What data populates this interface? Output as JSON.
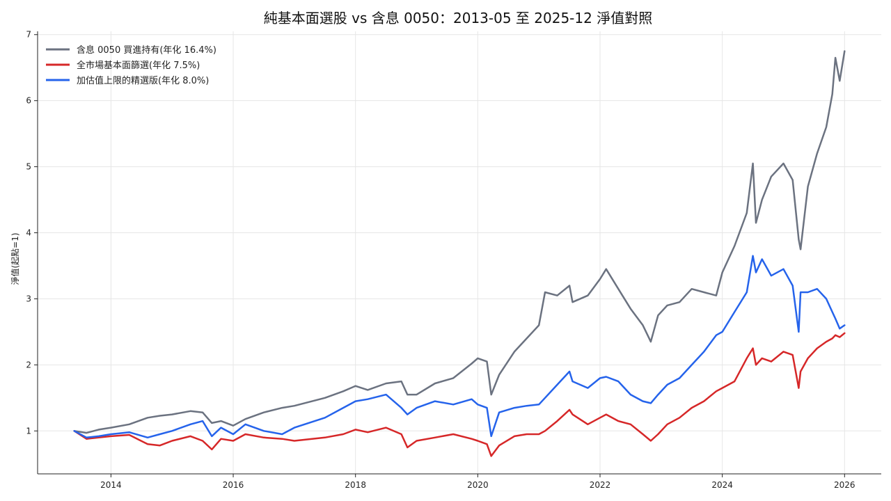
{
  "chart_data": {
    "type": "line",
    "title": "純基本面選股 vs 含息 0050：2013-05 至 2025-12 淨值對照",
    "xlabel": "",
    "ylabel": "淨值(起點=1)",
    "xlim": [
      2012.8,
      2026.6
    ],
    "ylim": [
      0.35,
      7.05
    ],
    "x_ticks": [
      2014,
      2016,
      2018,
      2020,
      2022,
      2024,
      2026
    ],
    "y_ticks": [
      1,
      2,
      3,
      4,
      5,
      6,
      7
    ],
    "grid": true,
    "legend_position": "top-left",
    "series": [
      {
        "name": "含息 0050 買進持有(年化 16.4%)",
        "color": "#6b7280",
        "x": [
          2013.4,
          2013.6,
          2013.8,
          2014.0,
          2014.3,
          2014.6,
          2014.8,
          2015.0,
          2015.3,
          2015.5,
          2015.65,
          2015.8,
          2016.0,
          2016.2,
          2016.5,
          2016.8,
          2017.0,
          2017.5,
          2017.8,
          2018.0,
          2018.2,
          2018.5,
          2018.75,
          2018.85,
          2019.0,
          2019.3,
          2019.6,
          2019.9,
          2020.0,
          2020.15,
          2020.22,
          2020.35,
          2020.6,
          2020.8,
          2021.0,
          2021.1,
          2021.3,
          2021.5,
          2021.55,
          2021.8,
          2022.0,
          2022.1,
          2022.3,
          2022.5,
          2022.7,
          2022.83,
          2022.95,
          2023.1,
          2023.3,
          2023.5,
          2023.7,
          2023.9,
          2024.0,
          2024.2,
          2024.4,
          2024.5,
          2024.55,
          2024.65,
          2024.8,
          2025.0,
          2025.15,
          2025.25,
          2025.28,
          2025.4,
          2025.55,
          2025.7,
          2025.8,
          2025.85,
          2025.92,
          2026.0
        ],
        "values": [
          1.0,
          0.97,
          1.02,
          1.05,
          1.1,
          1.2,
          1.23,
          1.25,
          1.3,
          1.28,
          1.12,
          1.15,
          1.08,
          1.18,
          1.28,
          1.35,
          1.38,
          1.5,
          1.6,
          1.68,
          1.62,
          1.72,
          1.75,
          1.55,
          1.55,
          1.72,
          1.8,
          2.02,
          2.1,
          2.05,
          1.55,
          1.85,
          2.2,
          2.4,
          2.6,
          3.1,
          3.05,
          3.2,
          2.95,
          3.05,
          3.3,
          3.45,
          3.15,
          2.85,
          2.6,
          2.35,
          2.75,
          2.9,
          2.95,
          3.15,
          3.1,
          3.05,
          3.4,
          3.8,
          4.3,
          5.05,
          4.15,
          4.5,
          4.85,
          5.05,
          4.8,
          3.9,
          3.75,
          4.7,
          5.2,
          5.6,
          6.1,
          6.65,
          6.3,
          6.75
        ]
      },
      {
        "name": "全市場基本面篩選(年化 7.5%)",
        "color": "#d62728",
        "x": [
          2013.4,
          2013.6,
          2013.8,
          2014.0,
          2014.3,
          2014.6,
          2014.8,
          2015.0,
          2015.3,
          2015.5,
          2015.65,
          2015.8,
          2016.0,
          2016.2,
          2016.5,
          2016.8,
          2017.0,
          2017.5,
          2017.8,
          2018.0,
          2018.2,
          2018.5,
          2018.75,
          2018.85,
          2019.0,
          2019.3,
          2019.6,
          2019.9,
          2020.0,
          2020.15,
          2020.22,
          2020.35,
          2020.6,
          2020.8,
          2021.0,
          2021.1,
          2021.3,
          2021.5,
          2021.55,
          2021.8,
          2022.0,
          2022.1,
          2022.3,
          2022.5,
          2022.7,
          2022.83,
          2022.95,
          2023.1,
          2023.3,
          2023.5,
          2023.7,
          2023.9,
          2024.0,
          2024.2,
          2024.4,
          2024.5,
          2024.55,
          2024.65,
          2024.8,
          2025.0,
          2025.15,
          2025.25,
          2025.28,
          2025.4,
          2025.55,
          2025.7,
          2025.8,
          2025.85,
          2025.92,
          2026.0
        ],
        "values": [
          1.0,
          0.88,
          0.9,
          0.92,
          0.94,
          0.8,
          0.78,
          0.85,
          0.92,
          0.85,
          0.72,
          0.88,
          0.85,
          0.95,
          0.9,
          0.88,
          0.85,
          0.9,
          0.95,
          1.02,
          0.98,
          1.05,
          0.95,
          0.75,
          0.85,
          0.9,
          0.95,
          0.88,
          0.85,
          0.8,
          0.62,
          0.78,
          0.92,
          0.95,
          0.95,
          1.0,
          1.15,
          1.32,
          1.25,
          1.1,
          1.2,
          1.25,
          1.15,
          1.1,
          0.95,
          0.85,
          0.95,
          1.1,
          1.2,
          1.35,
          1.45,
          1.6,
          1.65,
          1.75,
          2.1,
          2.25,
          2.0,
          2.1,
          2.05,
          2.2,
          2.15,
          1.65,
          1.9,
          2.1,
          2.25,
          2.35,
          2.4,
          2.45,
          2.42,
          2.48
        ]
      },
      {
        "name": "加估值上限的精選版(年化 8.0%)",
        "color": "#2563eb",
        "x": [
          2013.4,
          2013.6,
          2013.8,
          2014.0,
          2014.3,
          2014.6,
          2014.8,
          2015.0,
          2015.3,
          2015.5,
          2015.65,
          2015.8,
          2016.0,
          2016.2,
          2016.5,
          2016.8,
          2017.0,
          2017.5,
          2017.8,
          2018.0,
          2018.2,
          2018.5,
          2018.75,
          2018.85,
          2019.0,
          2019.3,
          2019.6,
          2019.9,
          2020.0,
          2020.15,
          2020.22,
          2020.35,
          2020.6,
          2020.8,
          2021.0,
          2021.1,
          2021.3,
          2021.5,
          2021.55,
          2021.8,
          2022.0,
          2022.1,
          2022.3,
          2022.5,
          2022.7,
          2022.83,
          2022.95,
          2023.1,
          2023.3,
          2023.5,
          2023.7,
          2023.9,
          2024.0,
          2024.2,
          2024.4,
          2024.5,
          2024.55,
          2024.65,
          2024.8,
          2025.0,
          2025.15,
          2025.25,
          2025.28,
          2025.4,
          2025.55,
          2025.7,
          2025.8,
          2025.85,
          2025.92,
          2026.0
        ],
        "values": [
          1.0,
          0.9,
          0.92,
          0.95,
          0.98,
          0.9,
          0.95,
          1.0,
          1.1,
          1.15,
          0.92,
          1.05,
          0.95,
          1.1,
          1.0,
          0.95,
          1.05,
          1.2,
          1.35,
          1.45,
          1.48,
          1.55,
          1.35,
          1.25,
          1.35,
          1.45,
          1.4,
          1.48,
          1.4,
          1.35,
          0.92,
          1.28,
          1.35,
          1.38,
          1.4,
          1.5,
          1.7,
          1.9,
          1.75,
          1.65,
          1.8,
          1.82,
          1.75,
          1.55,
          1.45,
          1.42,
          1.55,
          1.7,
          1.8,
          2.0,
          2.2,
          2.45,
          2.5,
          2.8,
          3.1,
          3.65,
          3.4,
          3.6,
          3.35,
          3.45,
          3.2,
          2.5,
          3.1,
          3.1,
          3.15,
          3.0,
          2.8,
          2.7,
          2.55,
          2.6
        ]
      }
    ]
  }
}
